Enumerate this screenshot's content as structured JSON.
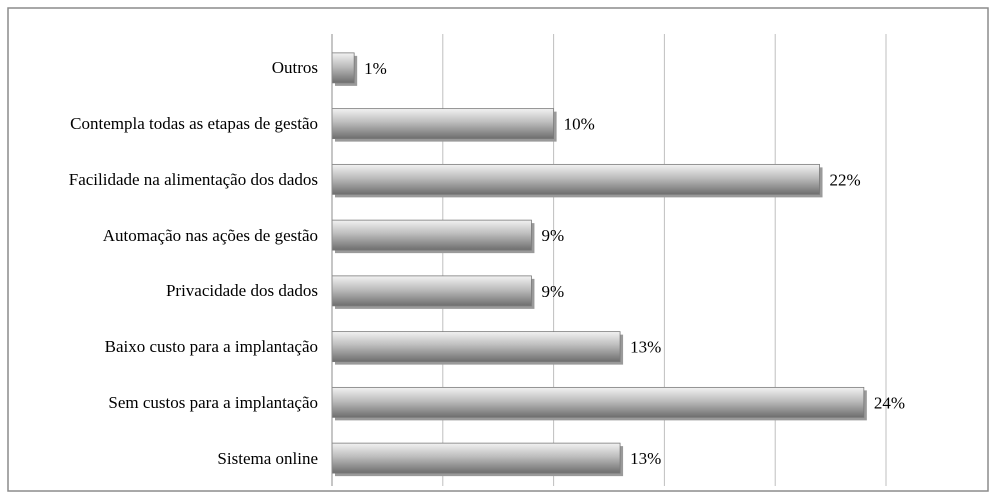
{
  "chart_data": {
    "type": "barh",
    "categories": [
      "Outros",
      "Contempla todas as etapas de gestão",
      "Facilidade na alimentação dos dados",
      "Automação nas ações de gestão",
      "Privacidade dos dados",
      "Baixo custo para a implantação",
      "Sem custos para a implantação",
      "Sistema online"
    ],
    "values": [
      1,
      10,
      22,
      9,
      9,
      13,
      24,
      13
    ],
    "value_labels": [
      "1%",
      "10%",
      "22%",
      "9%",
      "9%",
      "13%",
      "24%",
      "13%"
    ],
    "color": "#a6a6a6",
    "xlim": [
      0,
      25
    ],
    "xticks": [
      0,
      5,
      10,
      15,
      20,
      25
    ],
    "grid": true
  }
}
